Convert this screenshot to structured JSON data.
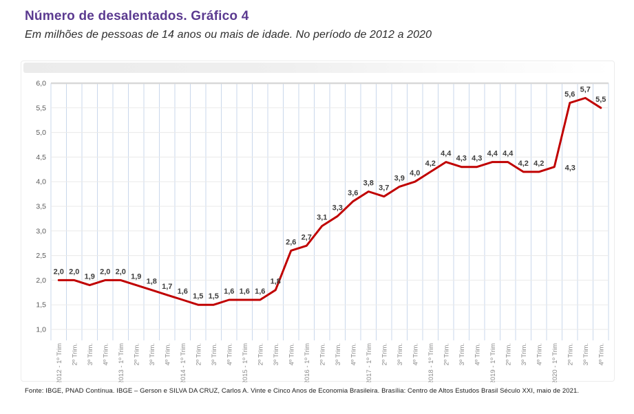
{
  "header": {
    "title": "Número de desalentados. Gráfico 4",
    "subtitle": "Em milhões de pessoas de 14 anos ou mais de idade. No período de 2012 a 2020"
  },
  "chart_data": {
    "type": "line",
    "title": "Número de desalentados",
    "subtitle": "Em milhões de pessoas de 14 anos ou mais de idade. No período de 2012 a 2020",
    "xlabel": "",
    "ylabel": "",
    "ylim": [
      1.0,
      6.0
    ],
    "ytick_step": 0.5,
    "ytick_labels": [
      "6,0",
      "5,5",
      "5,0",
      "4,5",
      "4,0",
      "3,5",
      "3,0",
      "2,5",
      "2,0",
      "1,5",
      "1,0"
    ],
    "grid": true,
    "legend_position": "none",
    "categories": [
      "2012 - 1º Trim",
      "2º Trim.",
      "3º Trim.",
      "4º Trim.",
      "2013 - 1º Trim",
      "2º Trim.",
      "3º Trim.",
      "4º Trim.",
      "2014 - 1º Trim",
      "2º Trim.",
      "3º Trim.",
      "4º Trim.",
      "2015 - 1º Trim",
      "2º Trim.",
      "3º Trim.",
      "4º Trim.",
      "2016 - 1º Trim",
      "2º Trim.",
      "3º Trim.",
      "4º Trim.",
      "2017 - 1º Trim",
      "2º Trim.",
      "3º Trim.",
      "4º Trim.",
      "2018 - 1º Trim",
      "2º Trim.",
      "3º Trim.",
      "4º Trim.",
      "2019 - 1º Trim",
      "2º Trim.",
      "3º Trim.",
      "4º Trim.",
      "2020 - 1º Trim",
      "2º Trim.",
      "3º Trim.",
      "4º Trim."
    ],
    "values": [
      2.0,
      2.0,
      1.9,
      2.0,
      2.0,
      1.9,
      1.8,
      1.7,
      1.6,
      1.5,
      1.5,
      1.6,
      1.6,
      1.6,
      1.8,
      2.6,
      2.7,
      3.1,
      3.3,
      3.6,
      3.8,
      3.7,
      3.9,
      4.0,
      4.2,
      4.4,
      4.3,
      4.3,
      4.4,
      4.4,
      4.2,
      4.2,
      4.3,
      5.6,
      5.7,
      5.5
    ],
    "point_labels": [
      "2,0",
      "2,0",
      "1,9",
      "2,0",
      "2,0",
      "1,9",
      "1,8",
      "1,7",
      "1,6",
      "1,5",
      "1,5",
      "1,6",
      "1,6",
      "1,6",
      "1,8",
      "2,6",
      "2,7",
      "3,1",
      "3,3",
      "3,6",
      "3,8",
      "3,7",
      "3,9",
      "4,0",
      "4,2",
      "4,4",
      "4,3",
      "4,3",
      "4,4",
      "4,4",
      "4,2",
      "4,2",
      "4,3",
      "5,6",
      "5,7",
      "5,5"
    ]
  },
  "colors": {
    "title": "#5b3a90",
    "line": "#c00000",
    "point_label": "#3d3d3d",
    "y_axis_label": "#595959",
    "x_axis_label": "#8c8c8c",
    "h_grid": "#eaeaea",
    "h_grid_top": "#d8d8d8",
    "v_grid": "#c9d7eb"
  },
  "footer": {
    "source": "Fonte: IBGE, PNAD Contínua. IBGE – Gerson e SILVA DA CRUZ, Carlos A. Vinte e Cinco Anos de Economia Brasileira. Brasília:  Centro de Altos Estudos Brasil Século XXI, maio de 2021."
  }
}
